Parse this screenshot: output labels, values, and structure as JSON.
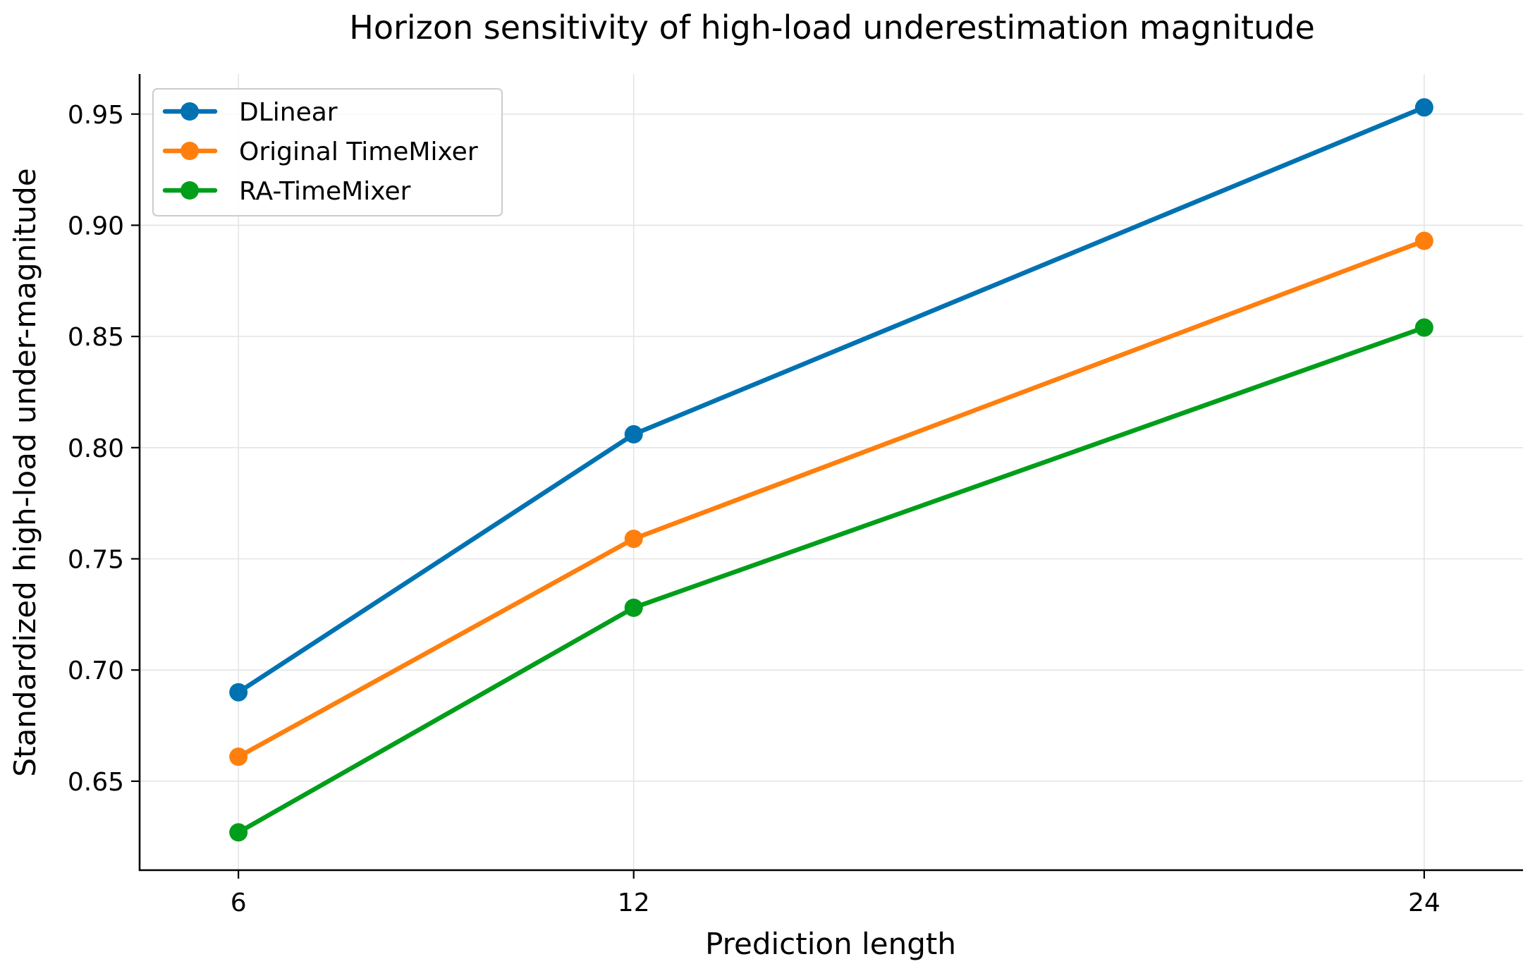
{
  "chart_data": {
    "type": "line",
    "title": "Horizon sensitivity of high-load underestimation magnitude",
    "xlabel": "Prediction length",
    "ylabel": "Standardized high-load under-magnitude",
    "x": [
      6,
      12,
      24
    ],
    "x_ticks": [
      "6",
      "12",
      "24"
    ],
    "xlim": [
      4.5,
      25.5
    ],
    "ylim": [
      0.61,
      0.968
    ],
    "y_ticks": [
      0.65,
      0.7,
      0.75,
      0.8,
      0.85,
      0.9,
      0.95
    ],
    "y_tick_labels": [
      "0.65",
      "0.70",
      "0.75",
      "0.80",
      "0.85",
      "0.90",
      "0.95"
    ],
    "grid": true,
    "legend_position": "top-left",
    "series": [
      {
        "name": "DLinear",
        "color": "#0072b2",
        "values": [
          0.69,
          0.806,
          0.953
        ]
      },
      {
        "name": "Original TimeMixer",
        "color": "#ff7f0e",
        "values": [
          0.661,
          0.759,
          0.893
        ]
      },
      {
        "name": "RA-TimeMixer",
        "color": "#009e1a",
        "values": [
          0.627,
          0.728,
          0.854
        ]
      }
    ]
  }
}
